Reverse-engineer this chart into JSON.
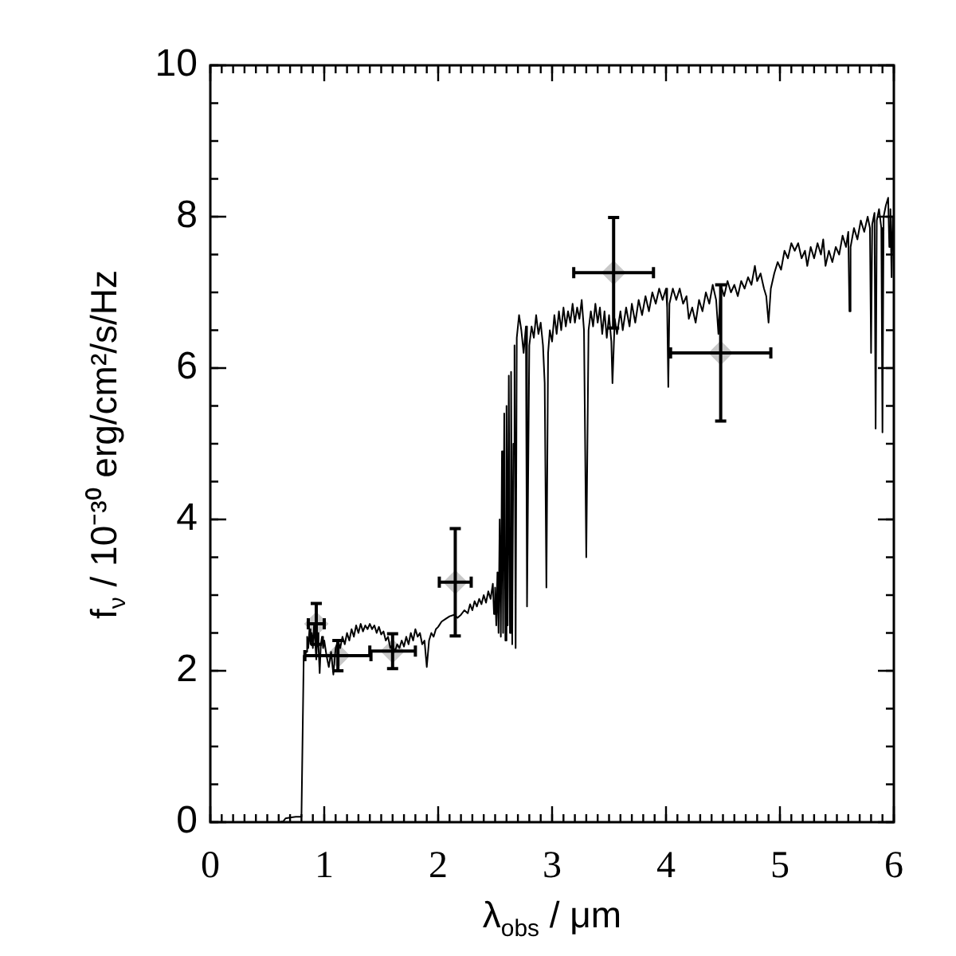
{
  "chart_data": {
    "type": "line",
    "xlabel": "λ$_{obs}$ / μm",
    "ylabel": "f$_{ν}$ / 10⁻³⁰ erg/cm²/s/Hz",
    "xlim": [
      0,
      6
    ],
    "xticks": [
      0,
      1,
      2,
      3,
      4,
      5,
      6
    ],
    "ylim": [
      0,
      10
    ],
    "yticks": [
      0,
      2,
      4,
      6,
      8,
      10
    ],
    "series": [
      {
        "color": "#000000",
        "marker": "none",
        "x": [
          0.55,
          0.6,
          0.64,
          0.66,
          0.7,
          0.75,
          0.8,
          0.81,
          0.82,
          0.84,
          0.85,
          0.86,
          0.87,
          0.88,
          0.89,
          0.9,
          0.91,
          0.92,
          0.93,
          0.94,
          0.95,
          0.96,
          0.97,
          0.98,
          0.99,
          1.0,
          1.02,
          1.04,
          1.06,
          1.08,
          1.1,
          1.12,
          1.14,
          1.16,
          1.18,
          1.2,
          1.22,
          1.24,
          1.26,
          1.28,
          1.3,
          1.32,
          1.34,
          1.36,
          1.38,
          1.4,
          1.42,
          1.44,
          1.46,
          1.48,
          1.5,
          1.52,
          1.54,
          1.56,
          1.58,
          1.6,
          1.62,
          1.64,
          1.66,
          1.68,
          1.7,
          1.72,
          1.74,
          1.76,
          1.78,
          1.8,
          1.82,
          1.84,
          1.86,
          1.88,
          1.9,
          1.92,
          1.94,
          1.96,
          1.98,
          2.0,
          2.03,
          2.06,
          2.1,
          2.14,
          2.17,
          2.2,
          2.23,
          2.26,
          2.28,
          2.3,
          2.32,
          2.34,
          2.36,
          2.38,
          2.4,
          2.42,
          2.44,
          2.46,
          2.48,
          2.49,
          2.5,
          2.51,
          2.52,
          2.53,
          2.54,
          2.55,
          2.56,
          2.57,
          2.58,
          2.59,
          2.6,
          2.61,
          2.62,
          2.63,
          2.64,
          2.65,
          2.66,
          2.67,
          2.68,
          2.69,
          2.71,
          2.73,
          2.75,
          2.77,
          2.78,
          2.8,
          2.82,
          2.84,
          2.86,
          2.88,
          2.9,
          2.92,
          2.935,
          2.95,
          2.965,
          2.98,
          3.0,
          3.02,
          3.04,
          3.06,
          3.08,
          3.1,
          3.12,
          3.14,
          3.16,
          3.18,
          3.2,
          3.22,
          3.24,
          3.26,
          3.28,
          3.3,
          3.32,
          3.34,
          3.36,
          3.38,
          3.4,
          3.42,
          3.44,
          3.46,
          3.48,
          3.5,
          3.52,
          3.53,
          3.55,
          3.57,
          3.6,
          3.62,
          3.65,
          3.68,
          3.7,
          3.73,
          3.76,
          3.79,
          3.82,
          3.85,
          3.88,
          3.91,
          3.94,
          3.97,
          4.0,
          4.01,
          4.02,
          4.03,
          4.06,
          4.09,
          4.12,
          4.15,
          4.18,
          4.2,
          4.23,
          4.26,
          4.29,
          4.32,
          4.35,
          4.38,
          4.41,
          4.44,
          4.46,
          4.48,
          4.51,
          4.54,
          4.57,
          4.6,
          4.63,
          4.66,
          4.69,
          4.72,
          4.75,
          4.78,
          4.8,
          4.83,
          4.86,
          4.88,
          4.9,
          4.92,
          4.95,
          4.98,
          5.01,
          5.04,
          5.07,
          5.1,
          5.13,
          5.16,
          5.19,
          5.22,
          5.24,
          5.27,
          5.3,
          5.33,
          5.36,
          5.38,
          5.4,
          5.43,
          5.46,
          5.49,
          5.52,
          5.55,
          5.58,
          5.6,
          5.61,
          5.62,
          5.65,
          5.68,
          5.71,
          5.74,
          5.77,
          5.79,
          5.8,
          5.81,
          5.83,
          5.84,
          5.85,
          5.87,
          5.89,
          5.9,
          5.91,
          5.93,
          5.95,
          5.96,
          5.97,
          5.98,
          5.99,
          6.0
        ],
        "values": [
          0.0,
          0.0,
          0.01,
          0.05,
          0.06,
          0.07,
          0.07,
          0.07,
          2.2,
          2.25,
          2.45,
          2.3,
          2.55,
          2.35,
          2.5,
          2.3,
          2.6,
          2.4,
          2.15,
          2.5,
          2.3,
          1.97,
          2.35,
          2.45,
          2.3,
          2.4,
          2.2,
          2.05,
          2.25,
          1.95,
          2.3,
          2.4,
          2.3,
          2.45,
          2.35,
          2.5,
          2.4,
          2.55,
          2.45,
          2.6,
          2.5,
          2.62,
          2.52,
          2.6,
          2.55,
          2.62,
          2.55,
          2.6,
          2.5,
          2.58,
          2.48,
          2.52,
          2.4,
          2.45,
          2.3,
          2.35,
          2.25,
          2.35,
          2.3,
          2.4,
          2.32,
          2.45,
          2.35,
          2.5,
          2.4,
          2.55,
          2.45,
          2.5,
          2.35,
          2.4,
          2.05,
          2.4,
          2.5,
          2.45,
          2.55,
          2.58,
          2.65,
          2.68,
          2.72,
          2.74,
          2.7,
          2.74,
          2.8,
          2.76,
          2.88,
          2.8,
          2.92,
          2.85,
          2.95,
          2.88,
          3.0,
          2.9,
          3.05,
          2.95,
          3.15,
          2.75,
          3.1,
          2.6,
          3.3,
          2.5,
          4.0,
          2.45,
          4.9,
          2.5,
          5.4,
          2.4,
          5.5,
          2.6,
          5.9,
          2.5,
          5.95,
          2.35,
          5.0,
          6.3,
          2.3,
          6.4,
          6.7,
          6.5,
          6.2,
          6.55,
          2.85,
          6.3,
          6.55,
          6.4,
          6.7,
          6.45,
          6.6,
          6.3,
          5.8,
          3.1,
          6.2,
          6.5,
          6.35,
          6.7,
          6.45,
          6.75,
          6.5,
          6.8,
          6.55,
          6.75,
          6.6,
          6.85,
          6.6,
          6.8,
          6.65,
          6.9,
          6.5,
          3.5,
          6.5,
          6.75,
          6.55,
          6.85,
          6.6,
          6.8,
          6.45,
          6.75,
          6.4,
          6.7,
          6.35,
          5.8,
          6.65,
          6.45,
          6.75,
          6.5,
          6.8,
          6.55,
          6.85,
          6.6,
          6.9,
          6.7,
          6.95,
          6.75,
          7.0,
          6.85,
          7.05,
          6.9,
          7.05,
          6.8,
          5.75,
          6.85,
          7.05,
          6.9,
          7.05,
          6.85,
          6.95,
          6.65,
          6.8,
          6.6,
          6.9,
          6.75,
          7.0,
          6.85,
          7.1,
          6.9,
          6.45,
          7.1,
          6.95,
          7.15,
          7.0,
          7.1,
          6.95,
          7.15,
          7.05,
          7.2,
          7.1,
          7.35,
          7.15,
          7.25,
          7.05,
          6.95,
          6.6,
          7.05,
          7.25,
          7.4,
          7.3,
          7.55,
          7.45,
          7.65,
          7.55,
          7.65,
          7.45,
          7.55,
          7.35,
          7.6,
          7.45,
          7.65,
          7.5,
          7.7,
          7.35,
          7.55,
          7.4,
          7.6,
          7.5,
          7.75,
          7.6,
          7.8,
          6.75,
          7.6,
          7.85,
          7.7,
          7.95,
          7.8,
          8.0,
          7.85,
          6.2,
          7.9,
          8.05,
          5.2,
          7.95,
          8.1,
          7.85,
          5.15,
          8.0,
          8.15,
          8.25,
          7.6,
          8.1,
          7.2,
          8.0,
          7.5
        ]
      },
      {
        "type": "scatter",
        "color": "#c8c8c8",
        "marker": "diamond",
        "x": [
          0.93,
          1.12,
          1.6,
          2.15,
          3.54,
          4.48
        ],
        "values": [
          2.62,
          2.2,
          2.26,
          3.17,
          7.26,
          6.2
        ],
        "errors": [
          0.27,
          0.2,
          0.23,
          0.71,
          0.73,
          0.9
        ],
        "xerrors": [
          0.07,
          0.29,
          0.2,
          0.14,
          0.35,
          0.44
        ]
      }
    ]
  }
}
